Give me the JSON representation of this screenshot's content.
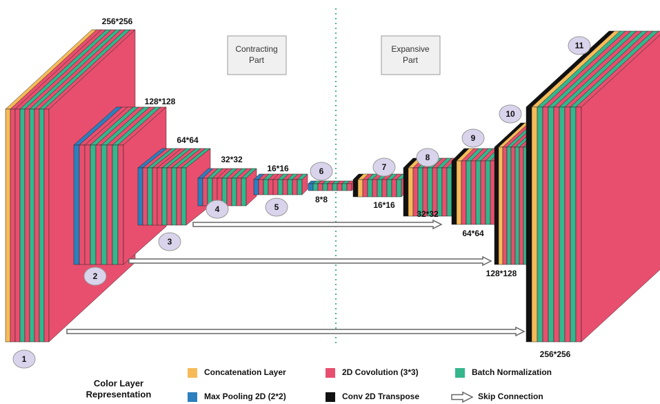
{
  "size_labels": [
    "256*256",
    "128*128",
    "64*64",
    "32*32",
    "16*16",
    "8*8",
    "16*16",
    "32*32",
    "64*64",
    "128*128",
    "256*256"
  ],
  "block_numbers": [
    "1",
    "2",
    "3",
    "4",
    "5",
    "6",
    "7",
    "8",
    "9",
    "10",
    "11"
  ],
  "sections": {
    "contracting": [
      "Contracting",
      "Part"
    ],
    "expansive": [
      "Expansive",
      "Part"
    ]
  },
  "legend": {
    "title": [
      "Color Layer",
      "Representation"
    ],
    "items": [
      {
        "label": "Concatenation Layer",
        "color": "#f6bb58"
      },
      {
        "label": "2D Covolution (3*3)",
        "color": "#e84f6e"
      },
      {
        "label": "Batch Normalization",
        "color": "#35b68c"
      },
      {
        "label": "Max Pooling 2D (2*2)",
        "color": "#2d7fbe"
      },
      {
        "label": "Conv 2D Transpose",
        "color": "#111111"
      },
      {
        "label": "Skip Connection"
      }
    ]
  }
}
